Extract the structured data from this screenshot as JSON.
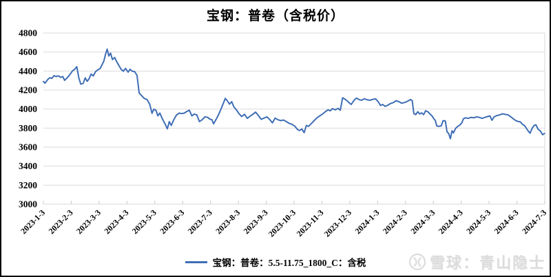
{
  "page": {
    "background": "#ffffff",
    "border_color": "#000000"
  },
  "chart": {
    "title": "宝钢：普卷（含税价）",
    "legend": {
      "label": "宝钢：普卷：5.5-11.75_1800_C：含税",
      "line_color": "#3e6db5"
    },
    "watermark": {
      "text": "雪球：青山隐士",
      "color": "#dcdcdc"
    }
  },
  "chart_data": {
    "type": "line",
    "title": "宝钢：普卷（含税价）",
    "xlabel": "",
    "ylabel": "",
    "ylim": [
      3000,
      4800
    ],
    "y_ticks": [
      4800,
      4600,
      4400,
      4200,
      4000,
      3800,
      3600,
      3400,
      3200,
      3000
    ],
    "x_tick_labels": [
      "2023-1-3",
      "2023-2-3",
      "2023-3-3",
      "2023-4-3",
      "2023-5-3",
      "2023-6-3",
      "2023-7-3",
      "2023-8-3",
      "2023-9-3",
      "2023-10-3",
      "2023-11-3",
      "2023-12-3",
      "2024-1-3",
      "2024-2-3",
      "2024-3-3",
      "2024-4-3",
      "2024-5-3",
      "2024-6-3",
      "2024-7-3"
    ],
    "x_unit": "t = months after 2023-1-3; t=0 is first tick, t=18 is last tick (ticks evenly spaced)",
    "grid": true,
    "grid_color": "#d9d9d9",
    "legend_position": "bottom-center",
    "series": [
      {
        "name": "宝钢：普卷：5.5-11.75_1800_C：含税",
        "color": "#3e6db5",
        "points": [
          [
            0.0,
            4290
          ],
          [
            0.06,
            4272
          ],
          [
            0.12,
            4298
          ],
          [
            0.18,
            4318
          ],
          [
            0.24,
            4330
          ],
          [
            0.3,
            4322
          ],
          [
            0.38,
            4352
          ],
          [
            0.46,
            4342
          ],
          [
            0.54,
            4350
          ],
          [
            0.62,
            4333
          ],
          [
            0.7,
            4342
          ],
          [
            0.76,
            4302
          ],
          [
            0.86,
            4330
          ],
          [
            0.95,
            4362
          ],
          [
            1.04,
            4400
          ],
          [
            1.12,
            4418
          ],
          [
            1.2,
            4445
          ],
          [
            1.27,
            4330
          ],
          [
            1.34,
            4262
          ],
          [
            1.43,
            4270
          ],
          [
            1.5,
            4328
          ],
          [
            1.57,
            4292
          ],
          [
            1.64,
            4318
          ],
          [
            1.71,
            4368
          ],
          [
            1.79,
            4348
          ],
          [
            1.87,
            4392
          ],
          [
            1.95,
            4412
          ],
          [
            2.04,
            4428
          ],
          [
            2.11,
            4468
          ],
          [
            2.17,
            4505
          ],
          [
            2.23,
            4575
          ],
          [
            2.29,
            4630
          ],
          [
            2.35,
            4558
          ],
          [
            2.41,
            4588
          ],
          [
            2.48,
            4520
          ],
          [
            2.56,
            4542
          ],
          [
            2.63,
            4498
          ],
          [
            2.71,
            4458
          ],
          [
            2.79,
            4418
          ],
          [
            2.87,
            4398
          ],
          [
            2.95,
            4428
          ],
          [
            3.04,
            4388
          ],
          [
            3.11,
            4418
          ],
          [
            3.19,
            4398
          ],
          [
            3.28,
            4392
          ],
          [
            3.36,
            4355
          ],
          [
            3.44,
            4168
          ],
          [
            3.53,
            4140
          ],
          [
            3.62,
            4112
          ],
          [
            3.72,
            4100
          ],
          [
            3.82,
            4048
          ],
          [
            3.9,
            3955
          ],
          [
            3.96,
            3998
          ],
          [
            4.04,
            3988
          ],
          [
            4.11,
            3928
          ],
          [
            4.18,
            3958
          ],
          [
            4.27,
            3898
          ],
          [
            4.36,
            3848
          ],
          [
            4.45,
            3792
          ],
          [
            4.52,
            3868
          ],
          [
            4.59,
            3828
          ],
          [
            4.68,
            3888
          ],
          [
            4.78,
            3938
          ],
          [
            4.88,
            3958
          ],
          [
            4.96,
            3952
          ],
          [
            5.06,
            3958
          ],
          [
            5.15,
            3975
          ],
          [
            5.24,
            3988
          ],
          [
            5.33,
            3928
          ],
          [
            5.42,
            3948
          ],
          [
            5.51,
            3938
          ],
          [
            5.6,
            3868
          ],
          [
            5.7,
            3888
          ],
          [
            5.8,
            3918
          ],
          [
            5.9,
            3912
          ],
          [
            5.97,
            3895
          ],
          [
            6.05,
            3888
          ],
          [
            6.11,
            3845
          ],
          [
            6.2,
            3892
          ],
          [
            6.29,
            3942
          ],
          [
            6.38,
            4002
          ],
          [
            6.46,
            4062
          ],
          [
            6.53,
            4112
          ],
          [
            6.6,
            4088
          ],
          [
            6.68,
            4052
          ],
          [
            6.76,
            4078
          ],
          [
            6.84,
            4022
          ],
          [
            6.93,
            3992
          ],
          [
            7.02,
            3952
          ],
          [
            7.12,
            3922
          ],
          [
            7.22,
            3945
          ],
          [
            7.32,
            3902
          ],
          [
            7.42,
            3925
          ],
          [
            7.52,
            3945
          ],
          [
            7.62,
            3968
          ],
          [
            7.72,
            3932
          ],
          [
            7.82,
            3892
          ],
          [
            7.92,
            3905
          ],
          [
            8.02,
            3918
          ],
          [
            8.12,
            3892
          ],
          [
            8.22,
            3855
          ],
          [
            8.32,
            3905
          ],
          [
            8.42,
            3888
          ],
          [
            8.52,
            3878
          ],
          [
            8.62,
            3885
          ],
          [
            8.72,
            3868
          ],
          [
            8.82,
            3850
          ],
          [
            8.92,
            3840
          ],
          [
            9.02,
            3822
          ],
          [
            9.12,
            3785
          ],
          [
            9.2,
            3775
          ],
          [
            9.28,
            3790
          ],
          [
            9.36,
            3752
          ],
          [
            9.44,
            3828
          ],
          [
            9.52,
            3818
          ],
          [
            9.62,
            3848
          ],
          [
            9.72,
            3878
          ],
          [
            9.82,
            3908
          ],
          [
            9.92,
            3928
          ],
          [
            10.02,
            3948
          ],
          [
            10.12,
            3972
          ],
          [
            10.22,
            3992
          ],
          [
            10.3,
            3982
          ],
          [
            10.38,
            4005
          ],
          [
            10.48,
            3992
          ],
          [
            10.58,
            4008
          ],
          [
            10.66,
            3988
          ],
          [
            10.74,
            4118
          ],
          [
            10.82,
            4105
          ],
          [
            10.9,
            4088
          ],
          [
            10.97,
            4068
          ],
          [
            11.05,
            4048
          ],
          [
            11.15,
            4092
          ],
          [
            11.24,
            4115
          ],
          [
            11.33,
            4100
          ],
          [
            11.42,
            4092
          ],
          [
            11.52,
            4108
          ],
          [
            11.62,
            4098
          ],
          [
            11.72,
            4092
          ],
          [
            11.82,
            4102
          ],
          [
            11.92,
            4108
          ],
          [
            12.02,
            4078
          ],
          [
            12.1,
            4038
          ],
          [
            12.18,
            4048
          ],
          [
            12.27,
            4028
          ],
          [
            12.36,
            4040
          ],
          [
            12.46,
            4058
          ],
          [
            12.56,
            4068
          ],
          [
            12.66,
            4088
          ],
          [
            12.76,
            4078
          ],
          [
            12.86,
            4062
          ],
          [
            12.95,
            4068
          ],
          [
            13.04,
            4078
          ],
          [
            13.11,
            4088
          ],
          [
            13.18,
            4100
          ],
          [
            13.24,
            4088
          ],
          [
            13.3,
            3952
          ],
          [
            13.37,
            3942
          ],
          [
            13.44,
            3972
          ],
          [
            13.51,
            3948
          ],
          [
            13.58,
            3960
          ],
          [
            13.65,
            3942
          ],
          [
            13.72,
            3982
          ],
          [
            13.8,
            3972
          ],
          [
            13.88,
            3948
          ],
          [
            13.95,
            3928
          ],
          [
            14.02,
            3898
          ],
          [
            14.07,
            3878
          ],
          [
            14.12,
            3822
          ],
          [
            14.2,
            3818
          ],
          [
            14.28,
            3822
          ],
          [
            14.35,
            3878
          ],
          [
            14.43,
            3875
          ],
          [
            14.49,
            3762
          ],
          [
            14.55,
            3742
          ],
          [
            14.61,
            3688
          ],
          [
            14.67,
            3772
          ],
          [
            14.72,
            3748
          ],
          [
            14.8,
            3798
          ],
          [
            14.88,
            3818
          ],
          [
            14.95,
            3832
          ],
          [
            15.02,
            3855
          ],
          [
            15.08,
            3898
          ],
          [
            15.15,
            3908
          ],
          [
            15.25,
            3902
          ],
          [
            15.35,
            3912
          ],
          [
            15.45,
            3908
          ],
          [
            15.55,
            3918
          ],
          [
            15.65,
            3912
          ],
          [
            15.75,
            3902
          ],
          [
            15.85,
            3912
          ],
          [
            15.95,
            3922
          ],
          [
            16.03,
            3928
          ],
          [
            16.1,
            3882
          ],
          [
            16.18,
            3918
          ],
          [
            16.28,
            3932
          ],
          [
            16.38,
            3938
          ],
          [
            16.48,
            3950
          ],
          [
            16.58,
            3944
          ],
          [
            16.68,
            3938
          ],
          [
            16.78,
            3918
          ],
          [
            16.88,
            3895
          ],
          [
            16.96,
            3878
          ],
          [
            17.04,
            3870
          ],
          [
            17.12,
            3866
          ],
          [
            17.2,
            3840
          ],
          [
            17.28,
            3824
          ],
          [
            17.35,
            3792
          ],
          [
            17.42,
            3764
          ],
          [
            17.47,
            3746
          ],
          [
            17.55,
            3800
          ],
          [
            17.62,
            3828
          ],
          [
            17.68,
            3834
          ],
          [
            17.76,
            3788
          ],
          [
            17.84,
            3770
          ],
          [
            17.92,
            3730
          ],
          [
            17.99,
            3744
          ]
        ]
      }
    ]
  }
}
